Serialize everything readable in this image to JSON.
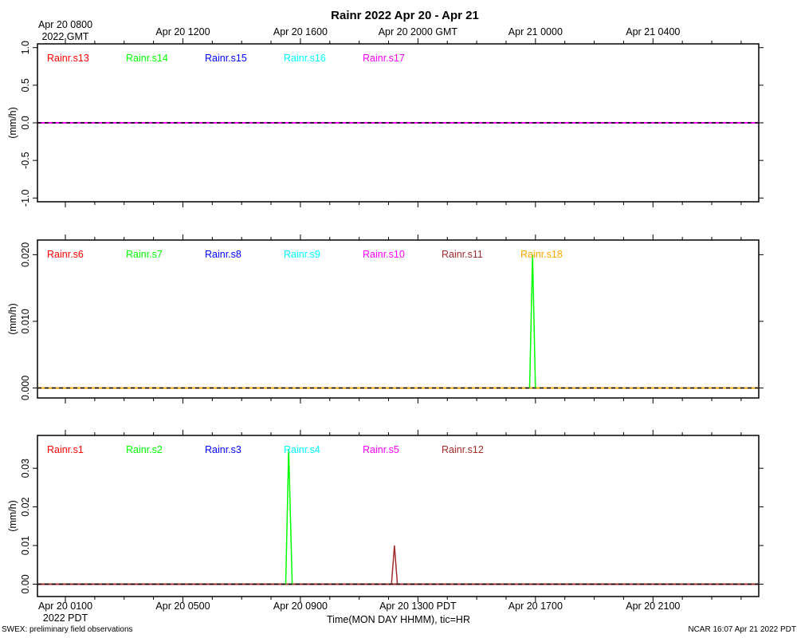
{
  "header": {
    "title": "Rainr 2022 Apr 20 - Apr 21"
  },
  "footer": {
    "left_note": "SWEX: preliminary field observations",
    "right_note": "NCAR 16:07 Apr 21 2022 PDT"
  },
  "colors": {
    "red": "#ff0000",
    "green": "#00ff00",
    "blue": "#0000ff",
    "cyan": "#00ffff",
    "magenta": "#ff00ff",
    "brown": "#a52a2a",
    "orange": "#ffa500",
    "baseline": "#000000"
  },
  "chart_data": {
    "type": "line",
    "x_unit": "hours since Apr 20 0800 GMT (Apr 20 0100 PDT)",
    "xlim": [
      -0.95,
      23.6
    ],
    "top_axis": {
      "ticks": [
        {
          "x": 0,
          "label1": "Apr 20 0800",
          "label2": "2022 GMT"
        },
        {
          "x": 4,
          "label1": "Apr 20 1200"
        },
        {
          "x": 8,
          "label1": "Apr 20 1600"
        },
        {
          "x": 12,
          "label1": "Apr 20 2000 GMT"
        },
        {
          "x": 16,
          "label1": "Apr 21 0000"
        },
        {
          "x": 20,
          "label1": "Apr 21 0400"
        }
      ]
    },
    "bottom_axis": {
      "xlabel": "Time(MON DAY HHMM), tic=HR",
      "ticks": [
        {
          "x": 0,
          "label1": "Apr 20 0100",
          "label2": "2022 PDT"
        },
        {
          "x": 4,
          "label1": "Apr 20 0500"
        },
        {
          "x": 8,
          "label1": "Apr 20 0900"
        },
        {
          "x": 12,
          "label1": "Apr 20 1300 PDT"
        },
        {
          "x": 16,
          "label1": "Apr 20 1700"
        },
        {
          "x": 20,
          "label1": "Apr 20 2100"
        }
      ]
    },
    "panels": [
      {
        "ylabel": "(mm/h)",
        "ylim": [
          -1.05,
          1.05
        ],
        "yticks": [
          -1.0,
          -0.5,
          0.0,
          0.5,
          1.0
        ],
        "ytick_labels": [
          "-1.0",
          "-0.5",
          "0.0",
          "0.5",
          "1.0"
        ],
        "series": [
          {
            "name": "Rainr.s13",
            "color": "#ff0000",
            "points": []
          },
          {
            "name": "Rainr.s14",
            "color": "#00ff00",
            "points": []
          },
          {
            "name": "Rainr.s15",
            "color": "#0000ff",
            "points": []
          },
          {
            "name": "Rainr.s16",
            "color": "#00ffff",
            "points": []
          },
          {
            "name": "Rainr.s17",
            "color": "#ff00ff",
            "points": []
          }
        ]
      },
      {
        "ylabel": "(mm/h)",
        "ylim": [
          -0.0015,
          0.0222
        ],
        "yticks": [
          0.0,
          0.01,
          0.02
        ],
        "ytick_labels": [
          "0.000",
          "0.010",
          "0.020"
        ],
        "series": [
          {
            "name": "Rainr.s6",
            "color": "#ff0000",
            "points": []
          },
          {
            "name": "Rainr.s7",
            "color": "#00ff00",
            "points": [
              [
                15.8,
                0
              ],
              [
                15.9,
                0.02
              ],
              [
                16.0,
                0
              ]
            ]
          },
          {
            "name": "Rainr.s8",
            "color": "#0000ff",
            "points": []
          },
          {
            "name": "Rainr.s9",
            "color": "#00ffff",
            "points": []
          },
          {
            "name": "Rainr.s10",
            "color": "#ff00ff",
            "points": []
          },
          {
            "name": "Rainr.s11",
            "color": "#a52a2a",
            "points": []
          },
          {
            "name": "Rainr.s18",
            "color": "#ffa500",
            "points": []
          }
        ]
      },
      {
        "ylabel": "(mm/h)",
        "ylim": [
          -0.0032,
          0.0385
        ],
        "yticks": [
          0.0,
          0.01,
          0.02,
          0.03
        ],
        "ytick_labels": [
          "0.00",
          "0.01",
          "0.02",
          "0.03"
        ],
        "series": [
          {
            "name": "Rainr.s1",
            "color": "#ff0000",
            "points": []
          },
          {
            "name": "Rainr.s2",
            "color": "#00ff00",
            "points": [
              [
                7.5,
                0
              ],
              [
                7.6,
                0.035
              ],
              [
                7.72,
                0
              ]
            ]
          },
          {
            "name": "Rainr.s3",
            "color": "#0000ff",
            "points": []
          },
          {
            "name": "Rainr.s4",
            "color": "#00ffff",
            "points": []
          },
          {
            "name": "Rainr.s5",
            "color": "#ff00ff",
            "points": []
          },
          {
            "name": "Rainr.s12",
            "color": "#a52a2a",
            "points": [
              [
                11.1,
                0
              ],
              [
                11.2,
                0.01
              ],
              [
                11.3,
                0
              ]
            ]
          }
        ]
      }
    ]
  }
}
